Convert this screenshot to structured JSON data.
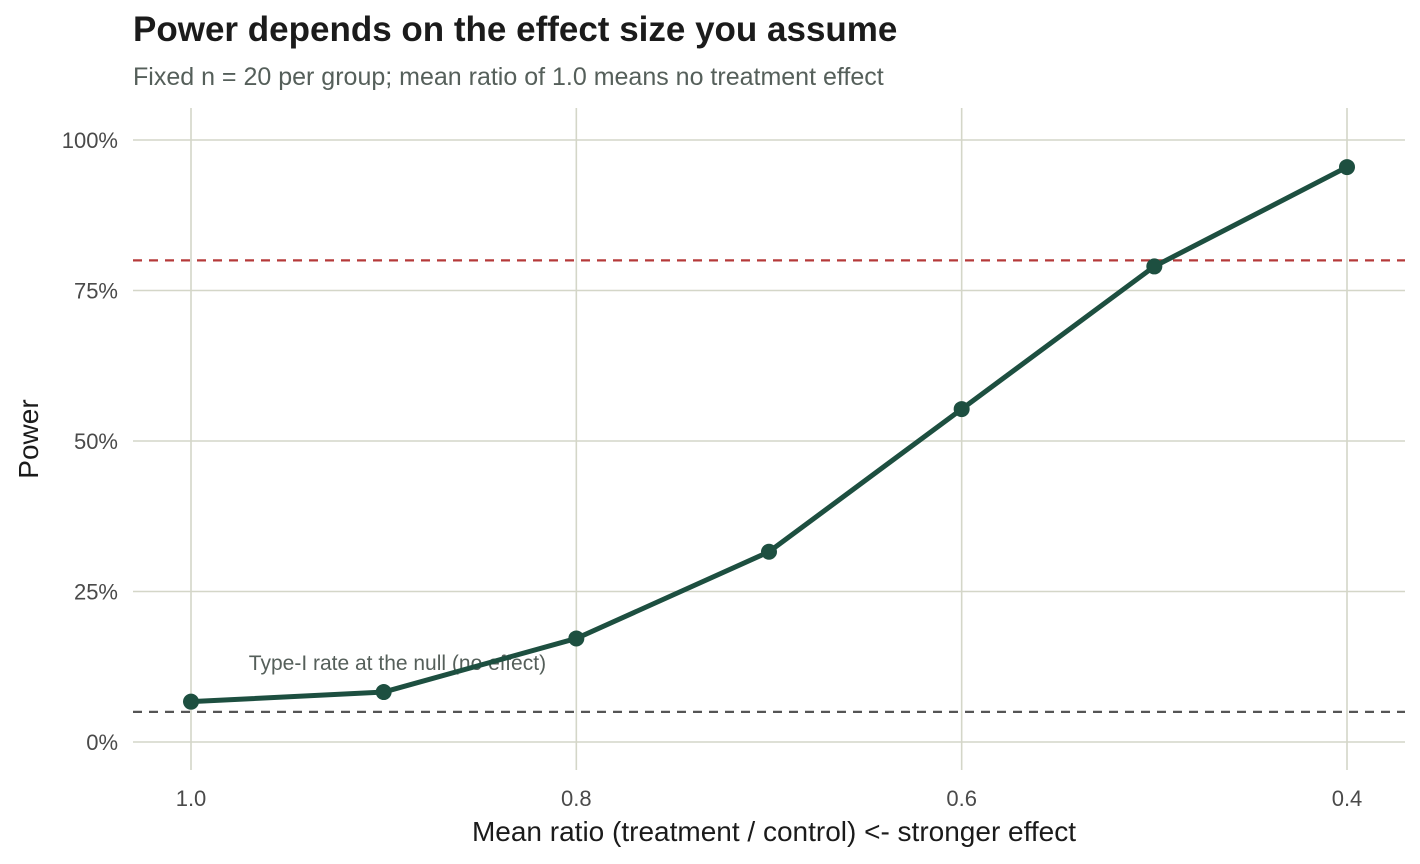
{
  "chart_data": {
    "type": "line",
    "title": "Power depends on the effect size you assume",
    "subtitle": "Fixed n = 20 per group; mean ratio of 1.0 means no treatment effect",
    "xlabel": "Mean ratio (treatment / control)  <- stronger effect",
    "ylabel": "Power",
    "x_reversed": true,
    "xlim": [
      1.0,
      0.4
    ],
    "ylim": [
      0,
      1
    ],
    "x_ticks": [
      1.0,
      0.8,
      0.6,
      0.4
    ],
    "x_tick_labels": [
      "1.0",
      "0.8",
      "0.6",
      "0.4"
    ],
    "y_ticks": [
      0,
      0.25,
      0.5,
      0.75,
      1.0
    ],
    "y_tick_labels": [
      "0%",
      "25%",
      "50%",
      "75%",
      "100%"
    ],
    "grid": true,
    "series": [
      {
        "x": [
          1.0,
          0.9,
          0.8,
          0.7,
          0.6,
          0.5,
          0.4
        ],
        "values": [
          0.067,
          0.083,
          0.172,
          0.316,
          0.553,
          0.79,
          0.955
        ],
        "color": "#1d4f40"
      }
    ],
    "reference_lines": [
      {
        "y": 0.8,
        "color": "#b53a3a",
        "style": "dashed"
      },
      {
        "y": 0.05,
        "color": "#555555",
        "style": "dashed"
      }
    ],
    "annotations": [
      {
        "text": "Type-I rate at the null (no effect)",
        "x": 0.97,
        "y": 0.12
      }
    ]
  }
}
